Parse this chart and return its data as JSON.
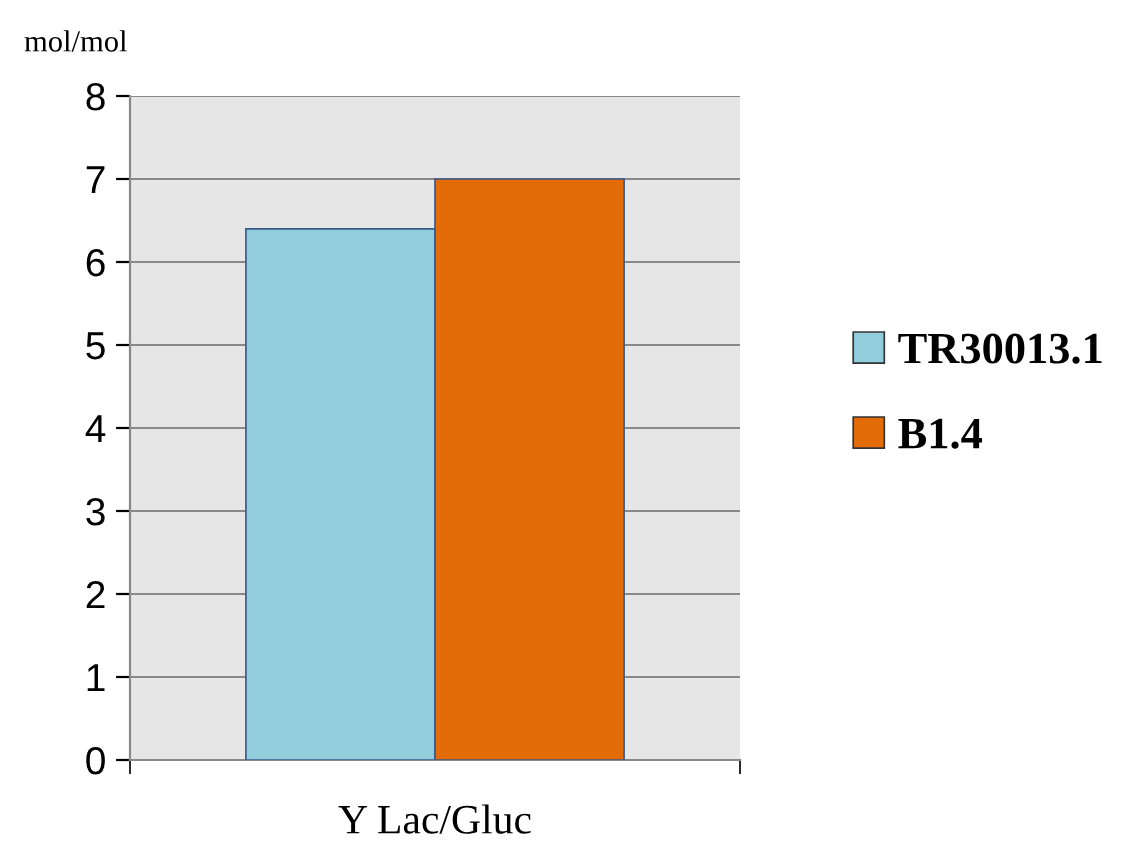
{
  "chart_data": {
    "type": "bar",
    "ylabel": "mol/mol",
    "categories": [
      "Y Lac/Gluc"
    ],
    "series": [
      {
        "name": "TR30013.1",
        "color": "#92cddc",
        "values": [
          6.4
        ]
      },
      {
        "name": "B1.4",
        "color": "#e36c09",
        "values": [
          7.0
        ]
      }
    ],
    "ylim": [
      0,
      8
    ],
    "yticks": [
      0,
      1,
      2,
      3,
      4,
      5,
      6,
      7,
      8
    ],
    "grid": "y",
    "legend": "right"
  }
}
